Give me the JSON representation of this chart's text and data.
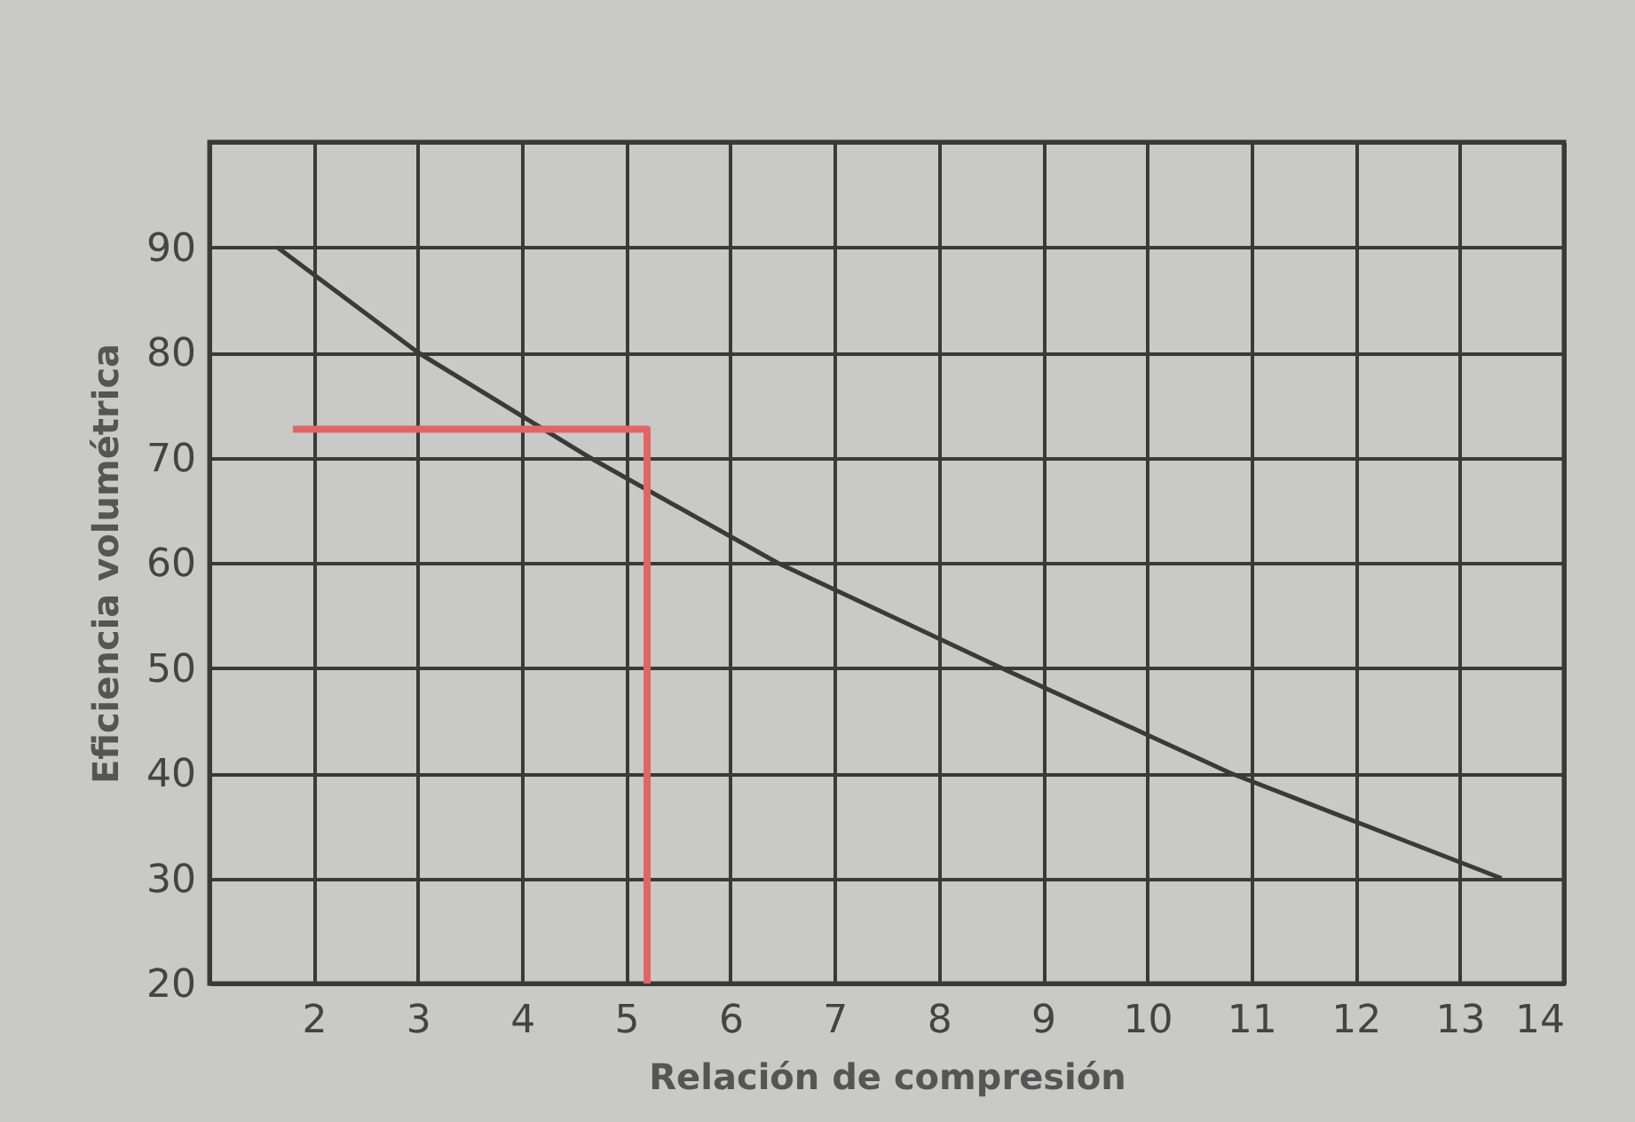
{
  "chart_data": {
    "type": "line",
    "xlabel": "Relación de compresión",
    "ylabel": "Eficiencia volumétrica",
    "xlim": [
      1,
      14
    ],
    "ylim": [
      20,
      100
    ],
    "xticks": [
      {
        "value": 1,
        "label": null
      },
      2,
      3,
      4,
      5,
      6,
      7,
      8,
      9,
      10,
      11,
      12,
      13,
      14
    ],
    "yticks": [
      20,
      30,
      40,
      50,
      60,
      70,
      80,
      90,
      {
        "value": 100,
        "label": null
      }
    ],
    "grid": true,
    "series": [
      {
        "color": "#3a3a3a",
        "x": [
          1.65,
          3,
          4.65,
          6.45,
          8.6,
          10.8,
          13.4
        ],
        "values": [
          90,
          80,
          70,
          60,
          50,
          40,
          30
        ]
      },
      {
        "color": "#e06666",
        "x": [
          1.8,
          5.2,
          5.2
        ],
        "values": [
          72.7,
          72.7,
          20
        ]
      }
    ]
  }
}
